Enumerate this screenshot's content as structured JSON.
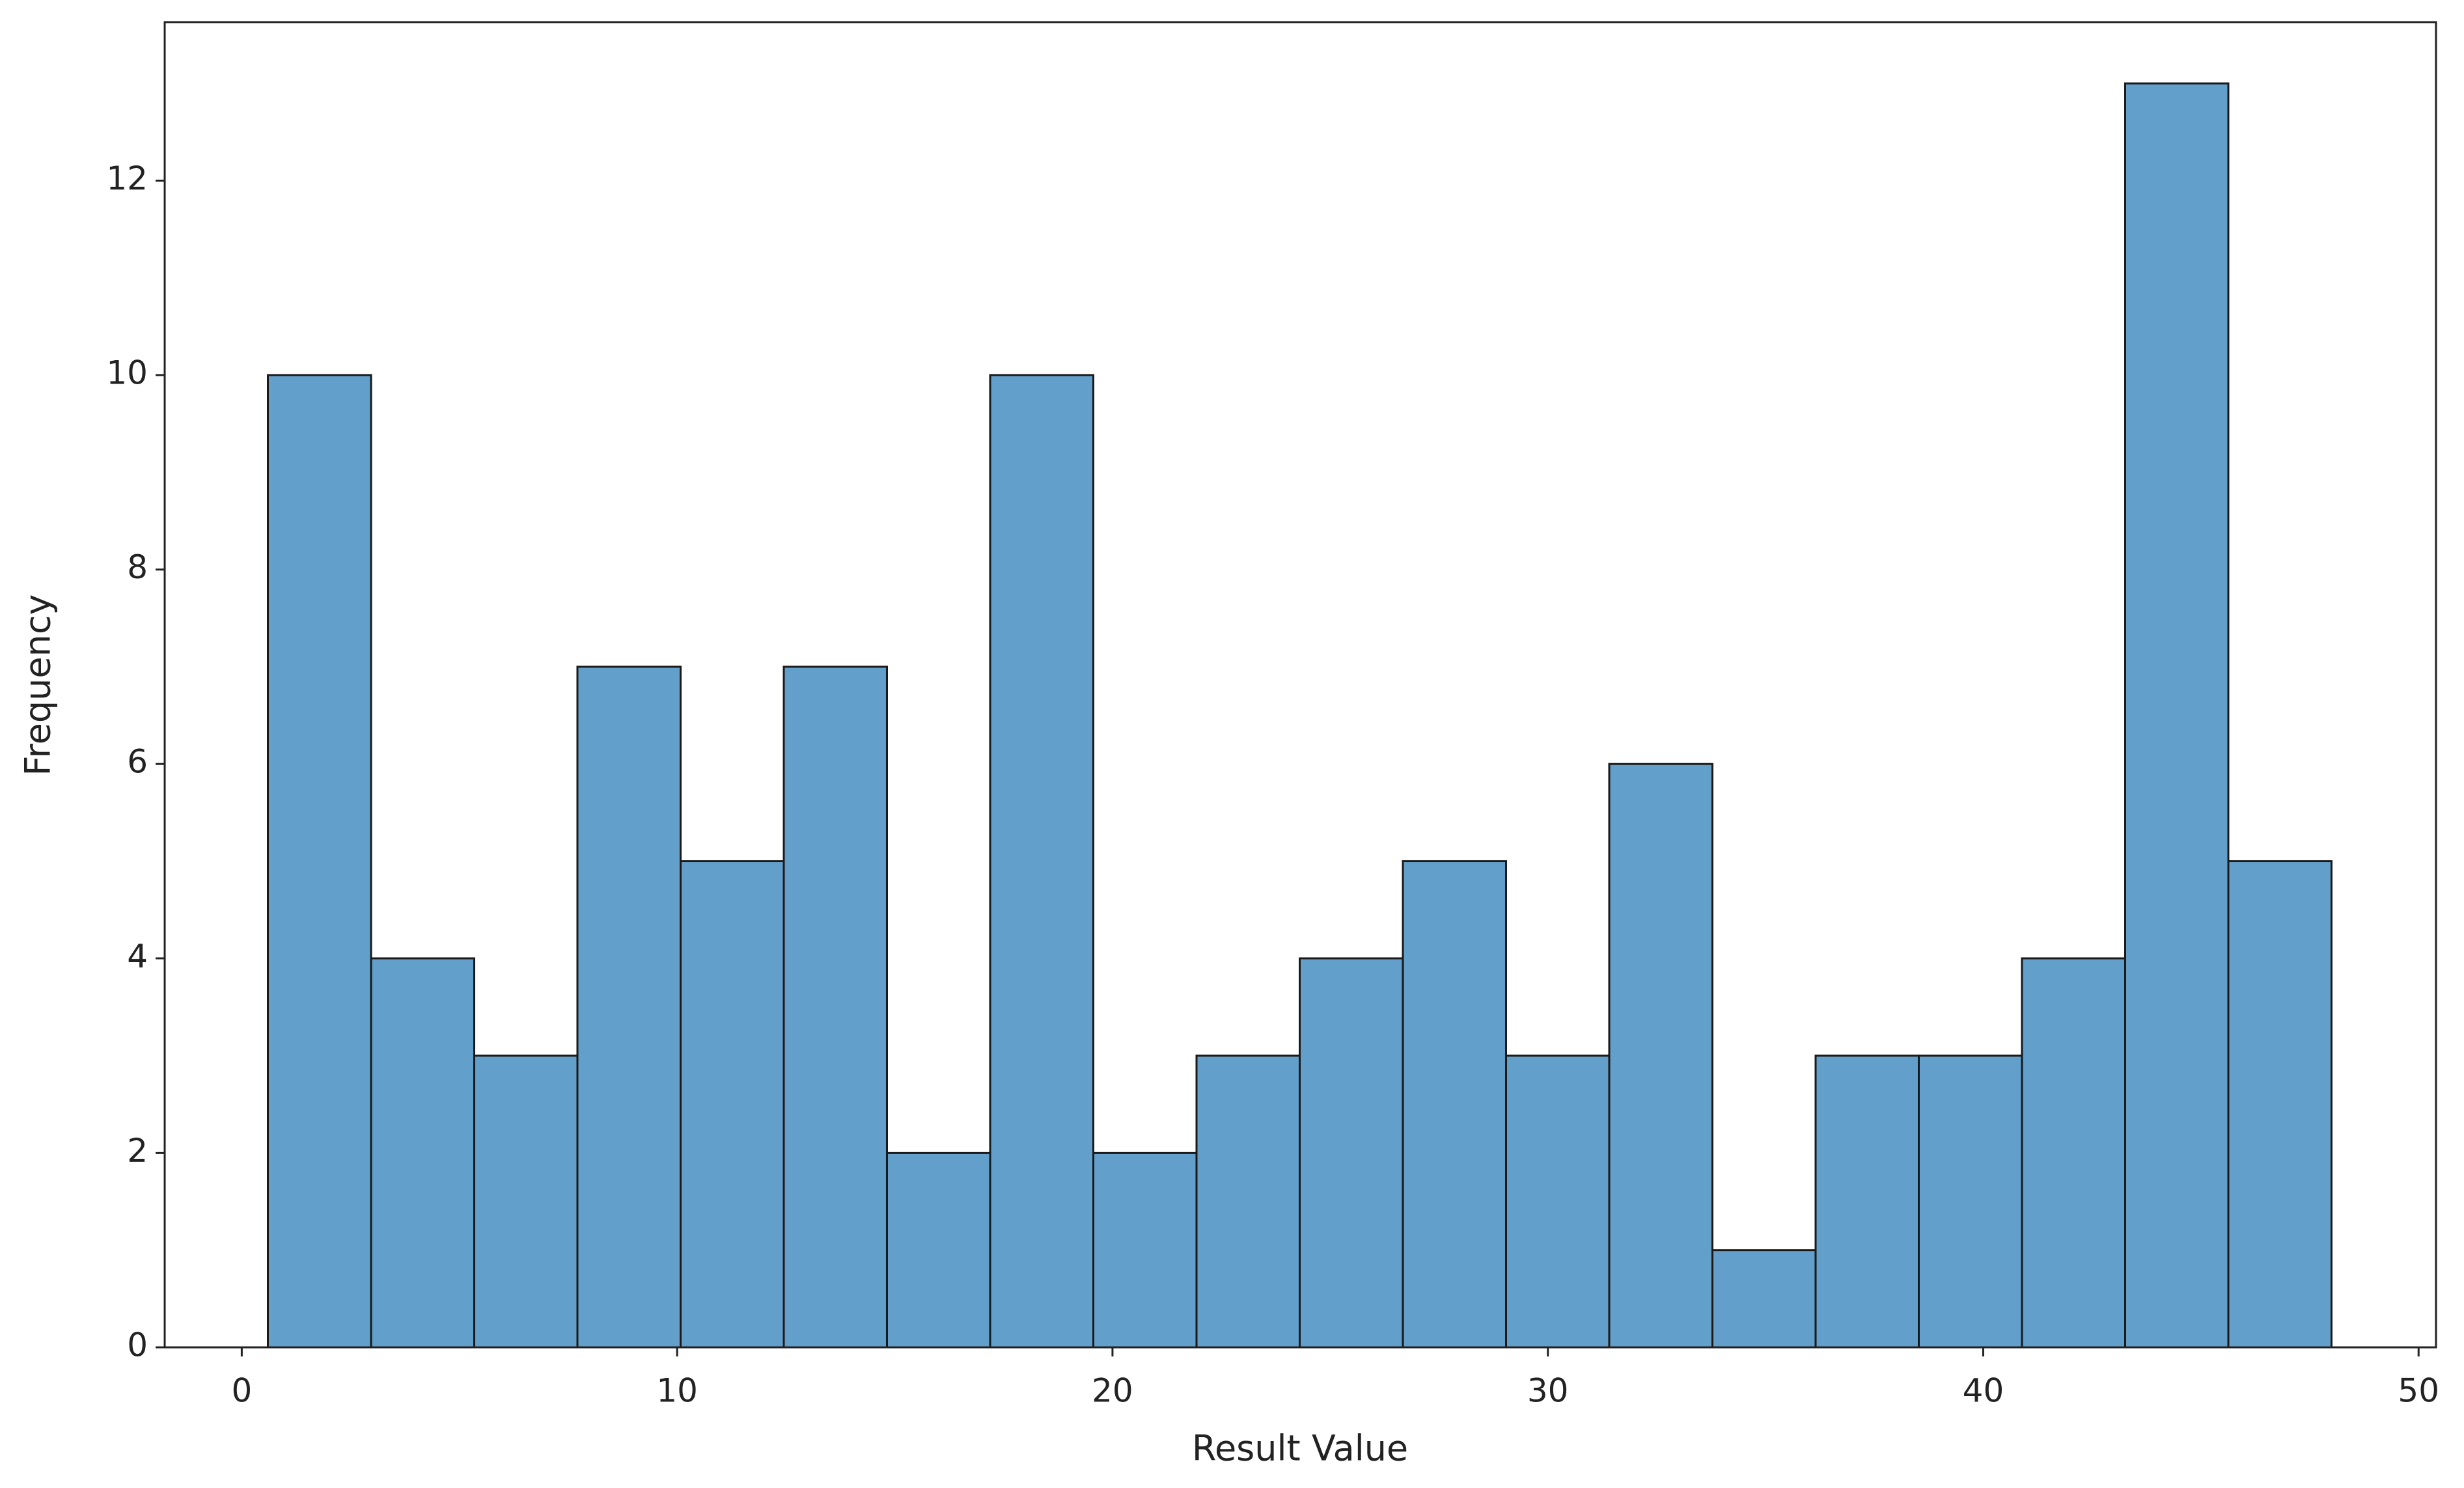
{
  "chart_data": {
    "type": "histogram",
    "x_label": "Result Value",
    "y_label": "Frequency",
    "bins": [
      0.6,
      2.97,
      5.34,
      7.71,
      10.08,
      12.45,
      14.82,
      17.19,
      19.56,
      21.93,
      24.3,
      26.67,
      29.04,
      31.41,
      33.78,
      36.15,
      38.52,
      40.89,
      43.26,
      45.63,
      48.0
    ],
    "values": [
      10,
      4,
      3,
      7,
      5,
      7,
      2,
      10,
      2,
      3,
      4,
      5,
      3,
      6,
      1,
      3,
      3,
      4,
      13,
      5
    ],
    "color": "#629fca",
    "edgecolor": "#1a1a1a",
    "xlim": [
      -1.77,
      50.4
    ],
    "ylim": [
      0,
      13.63
    ],
    "xticks": [
      0,
      10,
      20,
      30,
      40,
      50
    ],
    "yticks": [
      0,
      2,
      4,
      6,
      8,
      10,
      12
    ]
  }
}
